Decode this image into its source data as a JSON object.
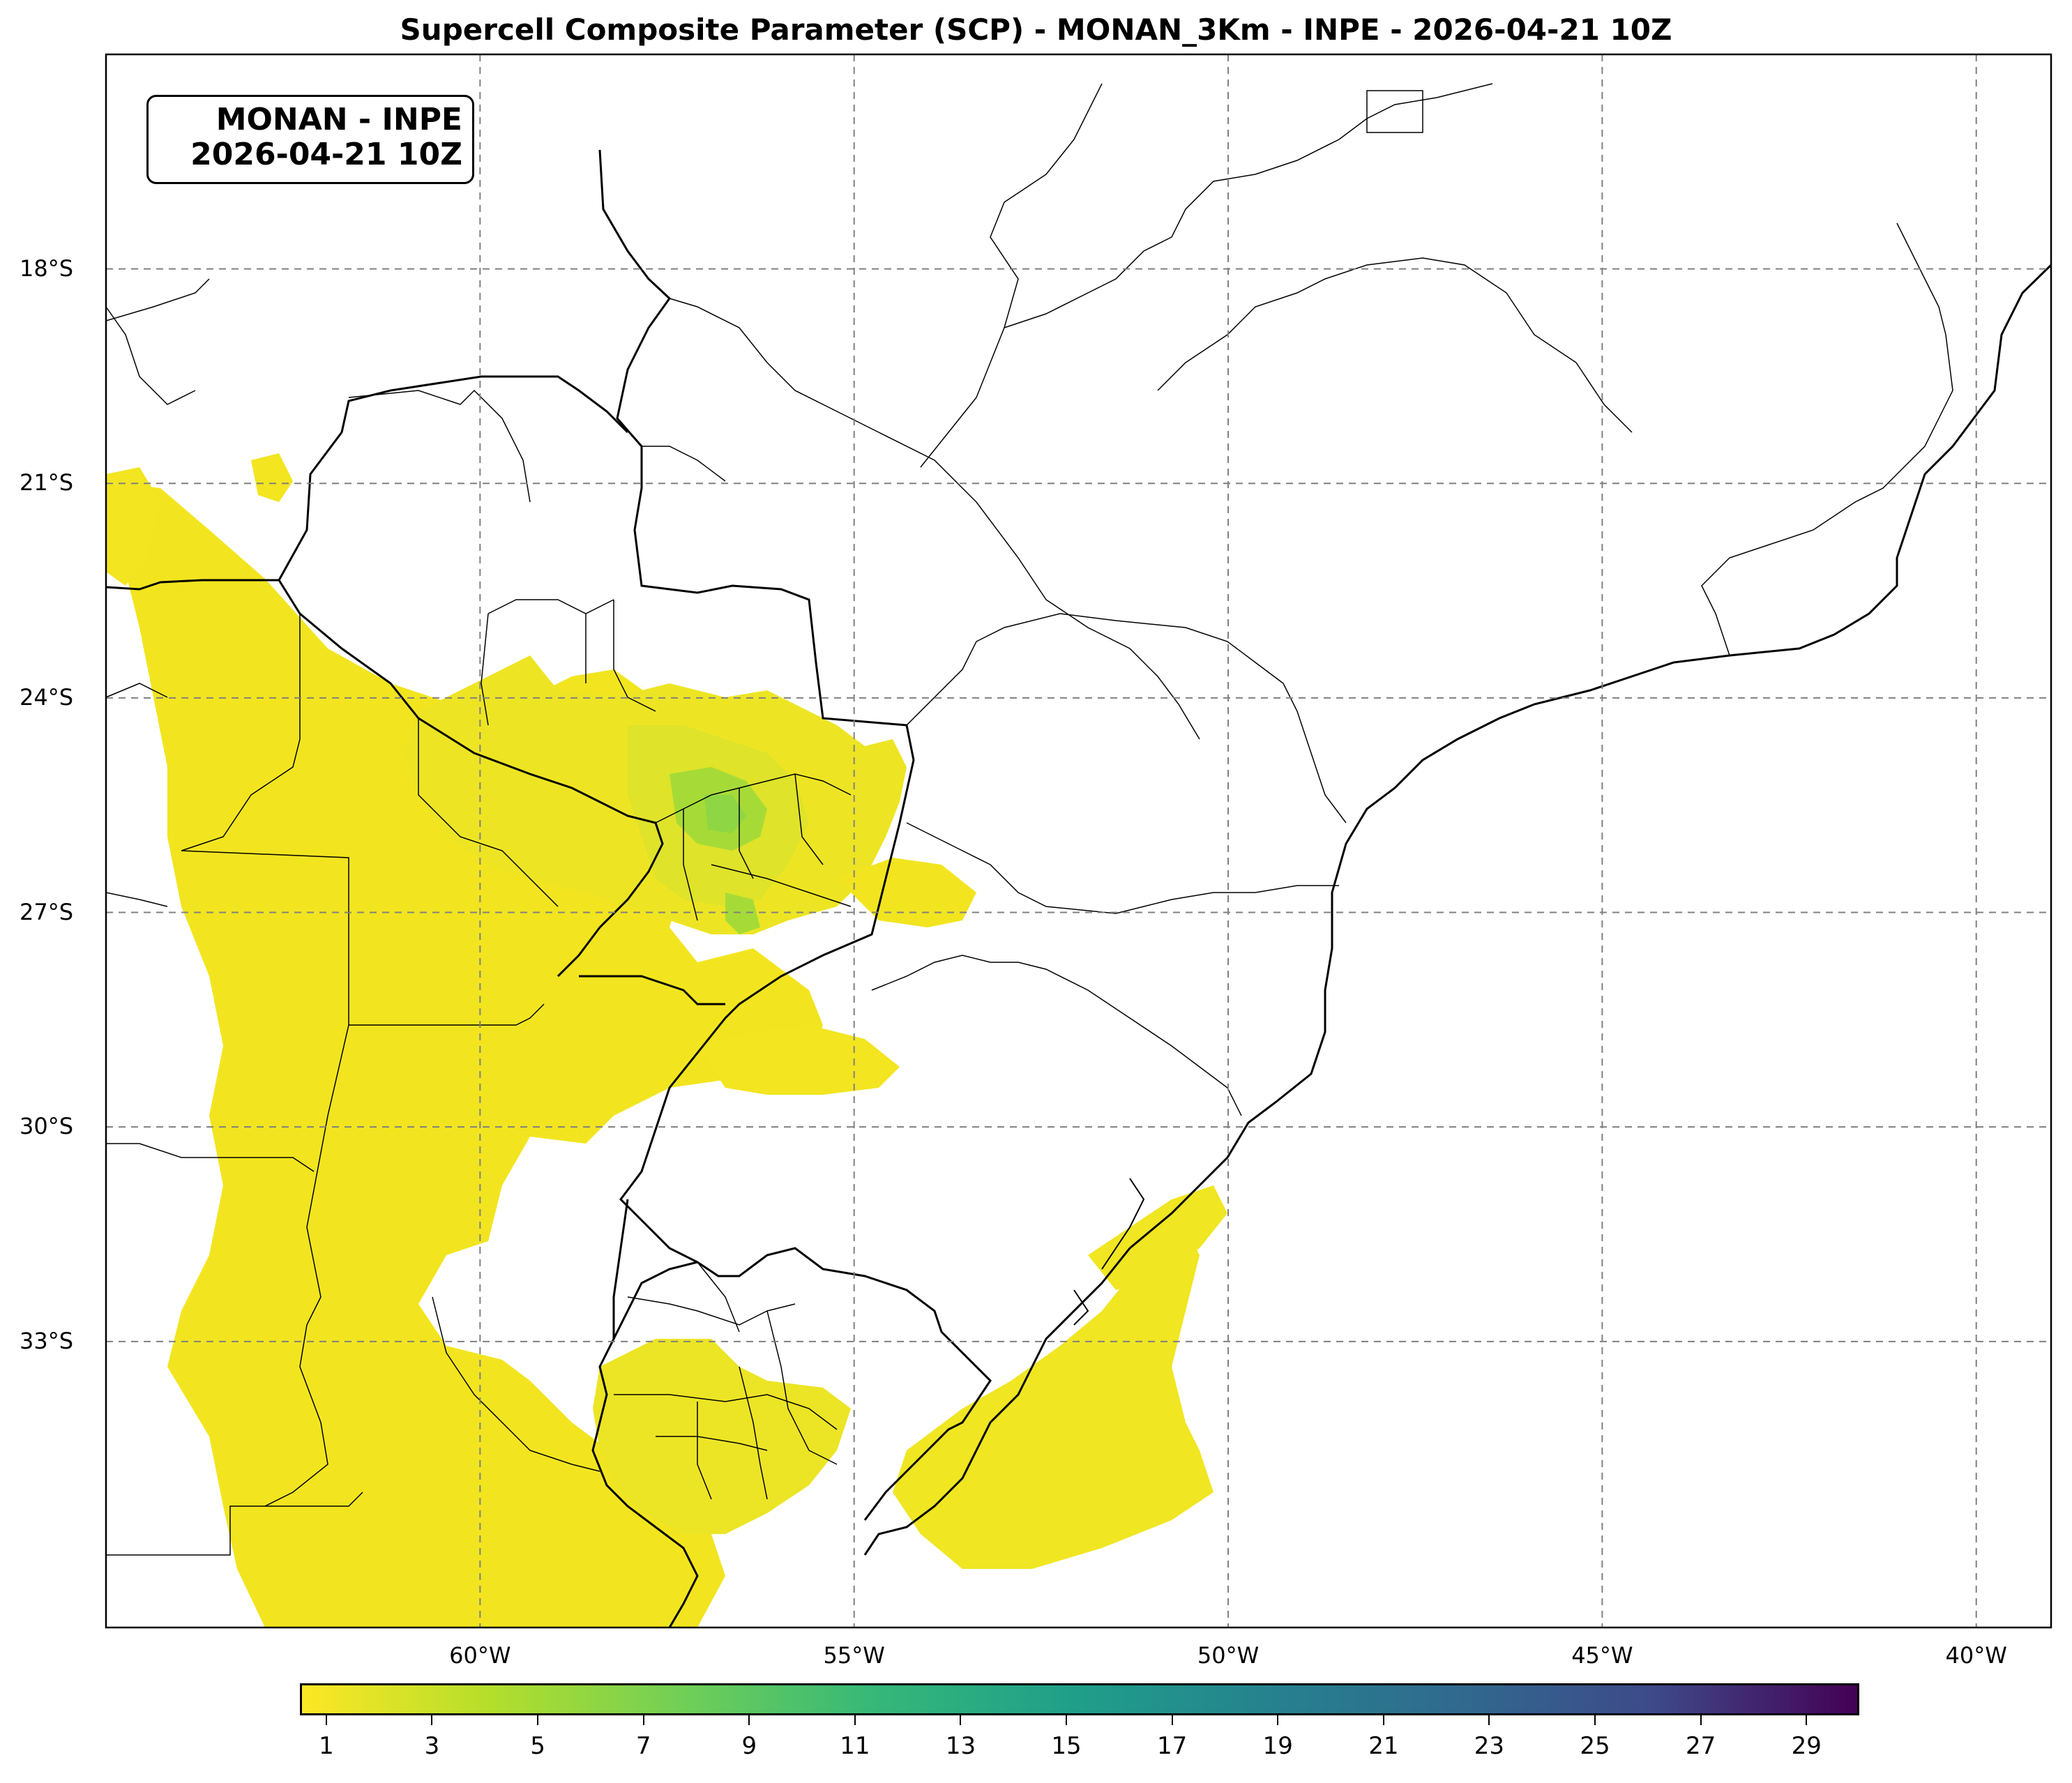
{
  "title": "Supercell Composite Parameter (SCP) - MONAN_3Km - INPE - 2026-04-21 10Z",
  "info_box": {
    "line1": "MONAN - INPE",
    "line2": "2026-04-21 10Z"
  },
  "map": {
    "lat_range": [
      -37.0,
      -15.0
    ],
    "lon_range": [
      -65.0,
      -39.0
    ],
    "lat_labels": [
      {
        "lat": -18,
        "text": "18°S"
      },
      {
        "lat": -21,
        "text": "21°S"
      },
      {
        "lat": -24,
        "text": "24°S"
      },
      {
        "lat": -27,
        "text": "27°S"
      },
      {
        "lat": -30,
        "text": "30°S"
      },
      {
        "lat": -33,
        "text": "33°S"
      }
    ],
    "lon_labels": [
      {
        "lon": -60,
        "text": "60°W"
      },
      {
        "lon": -55,
        "text": "55°W"
      },
      {
        "lon": -50,
        "text": "50°W"
      },
      {
        "lon": -45,
        "text": "45°W"
      },
      {
        "lon": -40,
        "text": "40°W"
      }
    ],
    "gridlines": "dashed gray",
    "field_color_low": "#fde725",
    "field_color_mid": "#a0da39",
    "field_color_high": "#4ac16d"
  },
  "colorbar": {
    "colormap": "viridis_r",
    "range": [
      0.5,
      30
    ],
    "ticks": [
      "1",
      "3",
      "5",
      "7",
      "9",
      "11",
      "13",
      "15",
      "17",
      "19",
      "21",
      "23",
      "25",
      "27",
      "29"
    ]
  }
}
